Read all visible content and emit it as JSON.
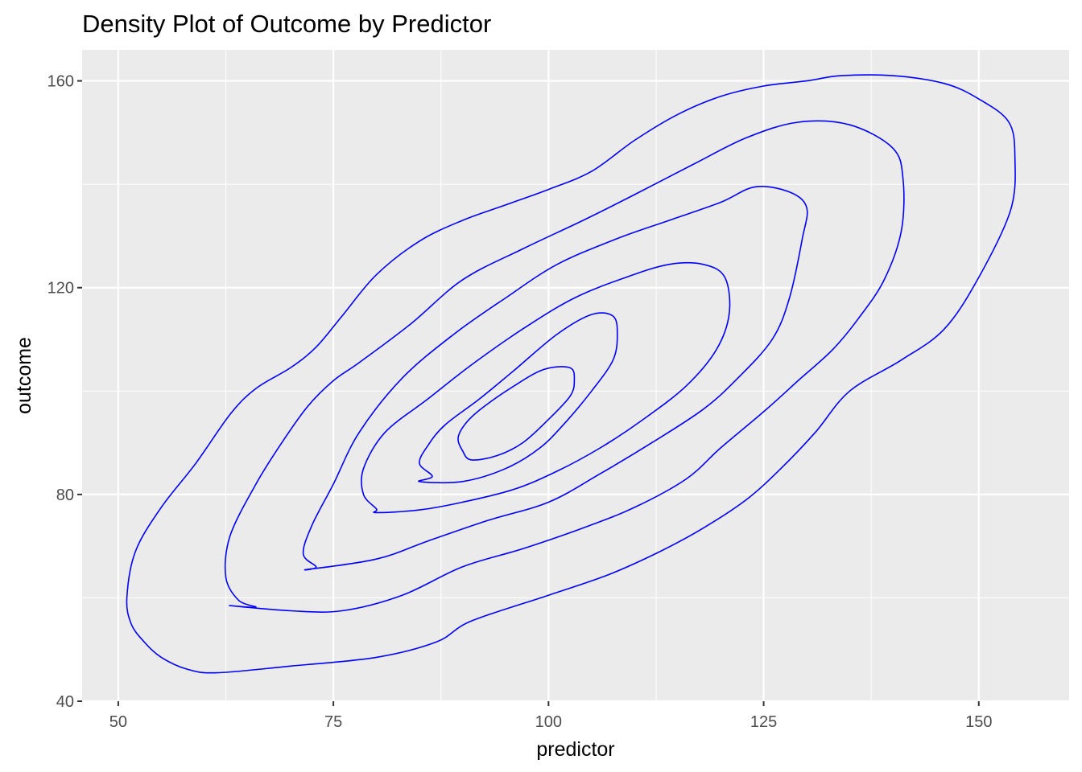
{
  "chart_data": {
    "type": "line",
    "subtype": "2d-density-contour",
    "title": "Density Plot of Outcome by Predictor",
    "xlabel": "predictor",
    "ylabel": "outcome",
    "xlim": [
      45.8,
      160.5
    ],
    "ylim": [
      40,
      166
    ],
    "xticks": [
      50,
      75,
      100,
      125,
      150
    ],
    "yticks": [
      40,
      80,
      120,
      160
    ],
    "x_tick_labels": [
      "50",
      "75",
      "100",
      "125",
      "150"
    ],
    "y_tick_labels": [
      "40",
      "80",
      "120",
      "160"
    ],
    "grid": true,
    "background": "#ebebeb",
    "grid_color": "#ffffff",
    "line_color": "#0000ff",
    "series": [
      {
        "level": 1,
        "x": [
          61.5,
          70,
          80,
          87,
          91,
          100,
          107,
          113,
          118,
          123,
          127,
          131,
          135,
          141,
          146,
          150,
          153.7,
          154.2,
          153.5,
          150,
          146,
          140,
          134,
          130,
          125,
          120,
          115,
          110,
          105,
          100,
          95,
          90,
          85,
          80,
          76,
          73,
          70,
          66,
          63,
          59,
          55,
          52,
          51,
          51.5,
          53,
          55,
          58
        ],
        "y": [
          45.5,
          46.8,
          48.5,
          51.5,
          55.5,
          60.5,
          64.5,
          69,
          73.5,
          79,
          85,
          92,
          100,
          106,
          112,
          122,
          135,
          145,
          152,
          156.5,
          159.5,
          161,
          161,
          160,
          159,
          157,
          153.5,
          148.5,
          142.5,
          139,
          136,
          133,
          129,
          122.5,
          114.5,
          108.5,
          104.5,
          100.5,
          95.5,
          86,
          77.5,
          69,
          60,
          55,
          51.5,
          48.5,
          46.2
        ]
      },
      {
        "x": [
          63,
          70,
          76,
          83,
          90,
          97,
          104,
          110,
          116,
          120,
          125,
          129,
          133,
          136,
          139,
          141,
          141.2,
          140,
          135,
          129,
          123,
          117,
          110,
          104,
          97,
          90,
          84,
          78,
          75,
          72,
          69,
          66,
          63,
          62.5,
          64,
          66
        ],
        "y": [
          58.5,
          57.5,
          57.5,
          60.5,
          66,
          69.5,
          73.5,
          77.5,
          83,
          89,
          96,
          102,
          108,
          114,
          121.5,
          131,
          141,
          147,
          151.5,
          152,
          149,
          144,
          138,
          133,
          127.5,
          121.5,
          113,
          105.5,
          102,
          97,
          90,
          82,
          72,
          64,
          59.5,
          58.2
        ]
      },
      {
        "x": [
          72,
          80,
          86,
          93,
          100,
          106,
          112,
          118,
          122,
          126,
          128,
          129.5,
          130,
          128,
          124,
          120,
          114,
          108,
          101,
          95,
          89,
          83,
          78,
          75,
          72.5,
          71.5,
          73
        ],
        "y": [
          65.5,
          67.5,
          71,
          75,
          78.5,
          84,
          90,
          96.5,
          102.5,
          110,
          118,
          129.5,
          135.5,
          138.5,
          139.5,
          136.5,
          133,
          129.5,
          124.5,
          118,
          111,
          102.5,
          92,
          82,
          74,
          68.5,
          66
        ]
      },
      {
        "x": [
          80,
          85,
          90,
          96,
          101,
          106,
          111,
          116,
          119.5,
          121,
          120.5,
          118,
          114,
          109,
          103,
          97,
          91,
          86,
          81,
          78.5,
          78.5,
          80
        ],
        "y": [
          76.5,
          77,
          78.5,
          81,
          84.5,
          89,
          94.5,
          101,
          108,
          115,
          122,
          124.5,
          124.5,
          122,
          118,
          112,
          105,
          98.5,
          92,
          85,
          80,
          77.2
        ]
      },
      {
        "x": [
          85,
          90,
          95,
          99,
          102,
          105,
          107.5,
          108,
          107.5,
          105,
          101,
          96,
          92,
          88,
          86,
          85,
          86.5
        ],
        "y": [
          82.5,
          82.5,
          85,
          89,
          94,
          100,
          106,
          111,
          114.5,
          114.8,
          111,
          104,
          98.5,
          93.5,
          89.5,
          86,
          83.5
        ]
      },
      {
        "level": 6,
        "x": [
          91,
          94,
          97,
          100,
          102.5,
          103,
          102.5,
          99.5,
          96,
          92.5,
          90.5,
          89.5,
          90
        ],
        "y": [
          86.7,
          87.5,
          90,
          94.5,
          99,
          102,
          104.5,
          104.2,
          101,
          97,
          94,
          91,
          88.5
        ]
      }
    ]
  }
}
